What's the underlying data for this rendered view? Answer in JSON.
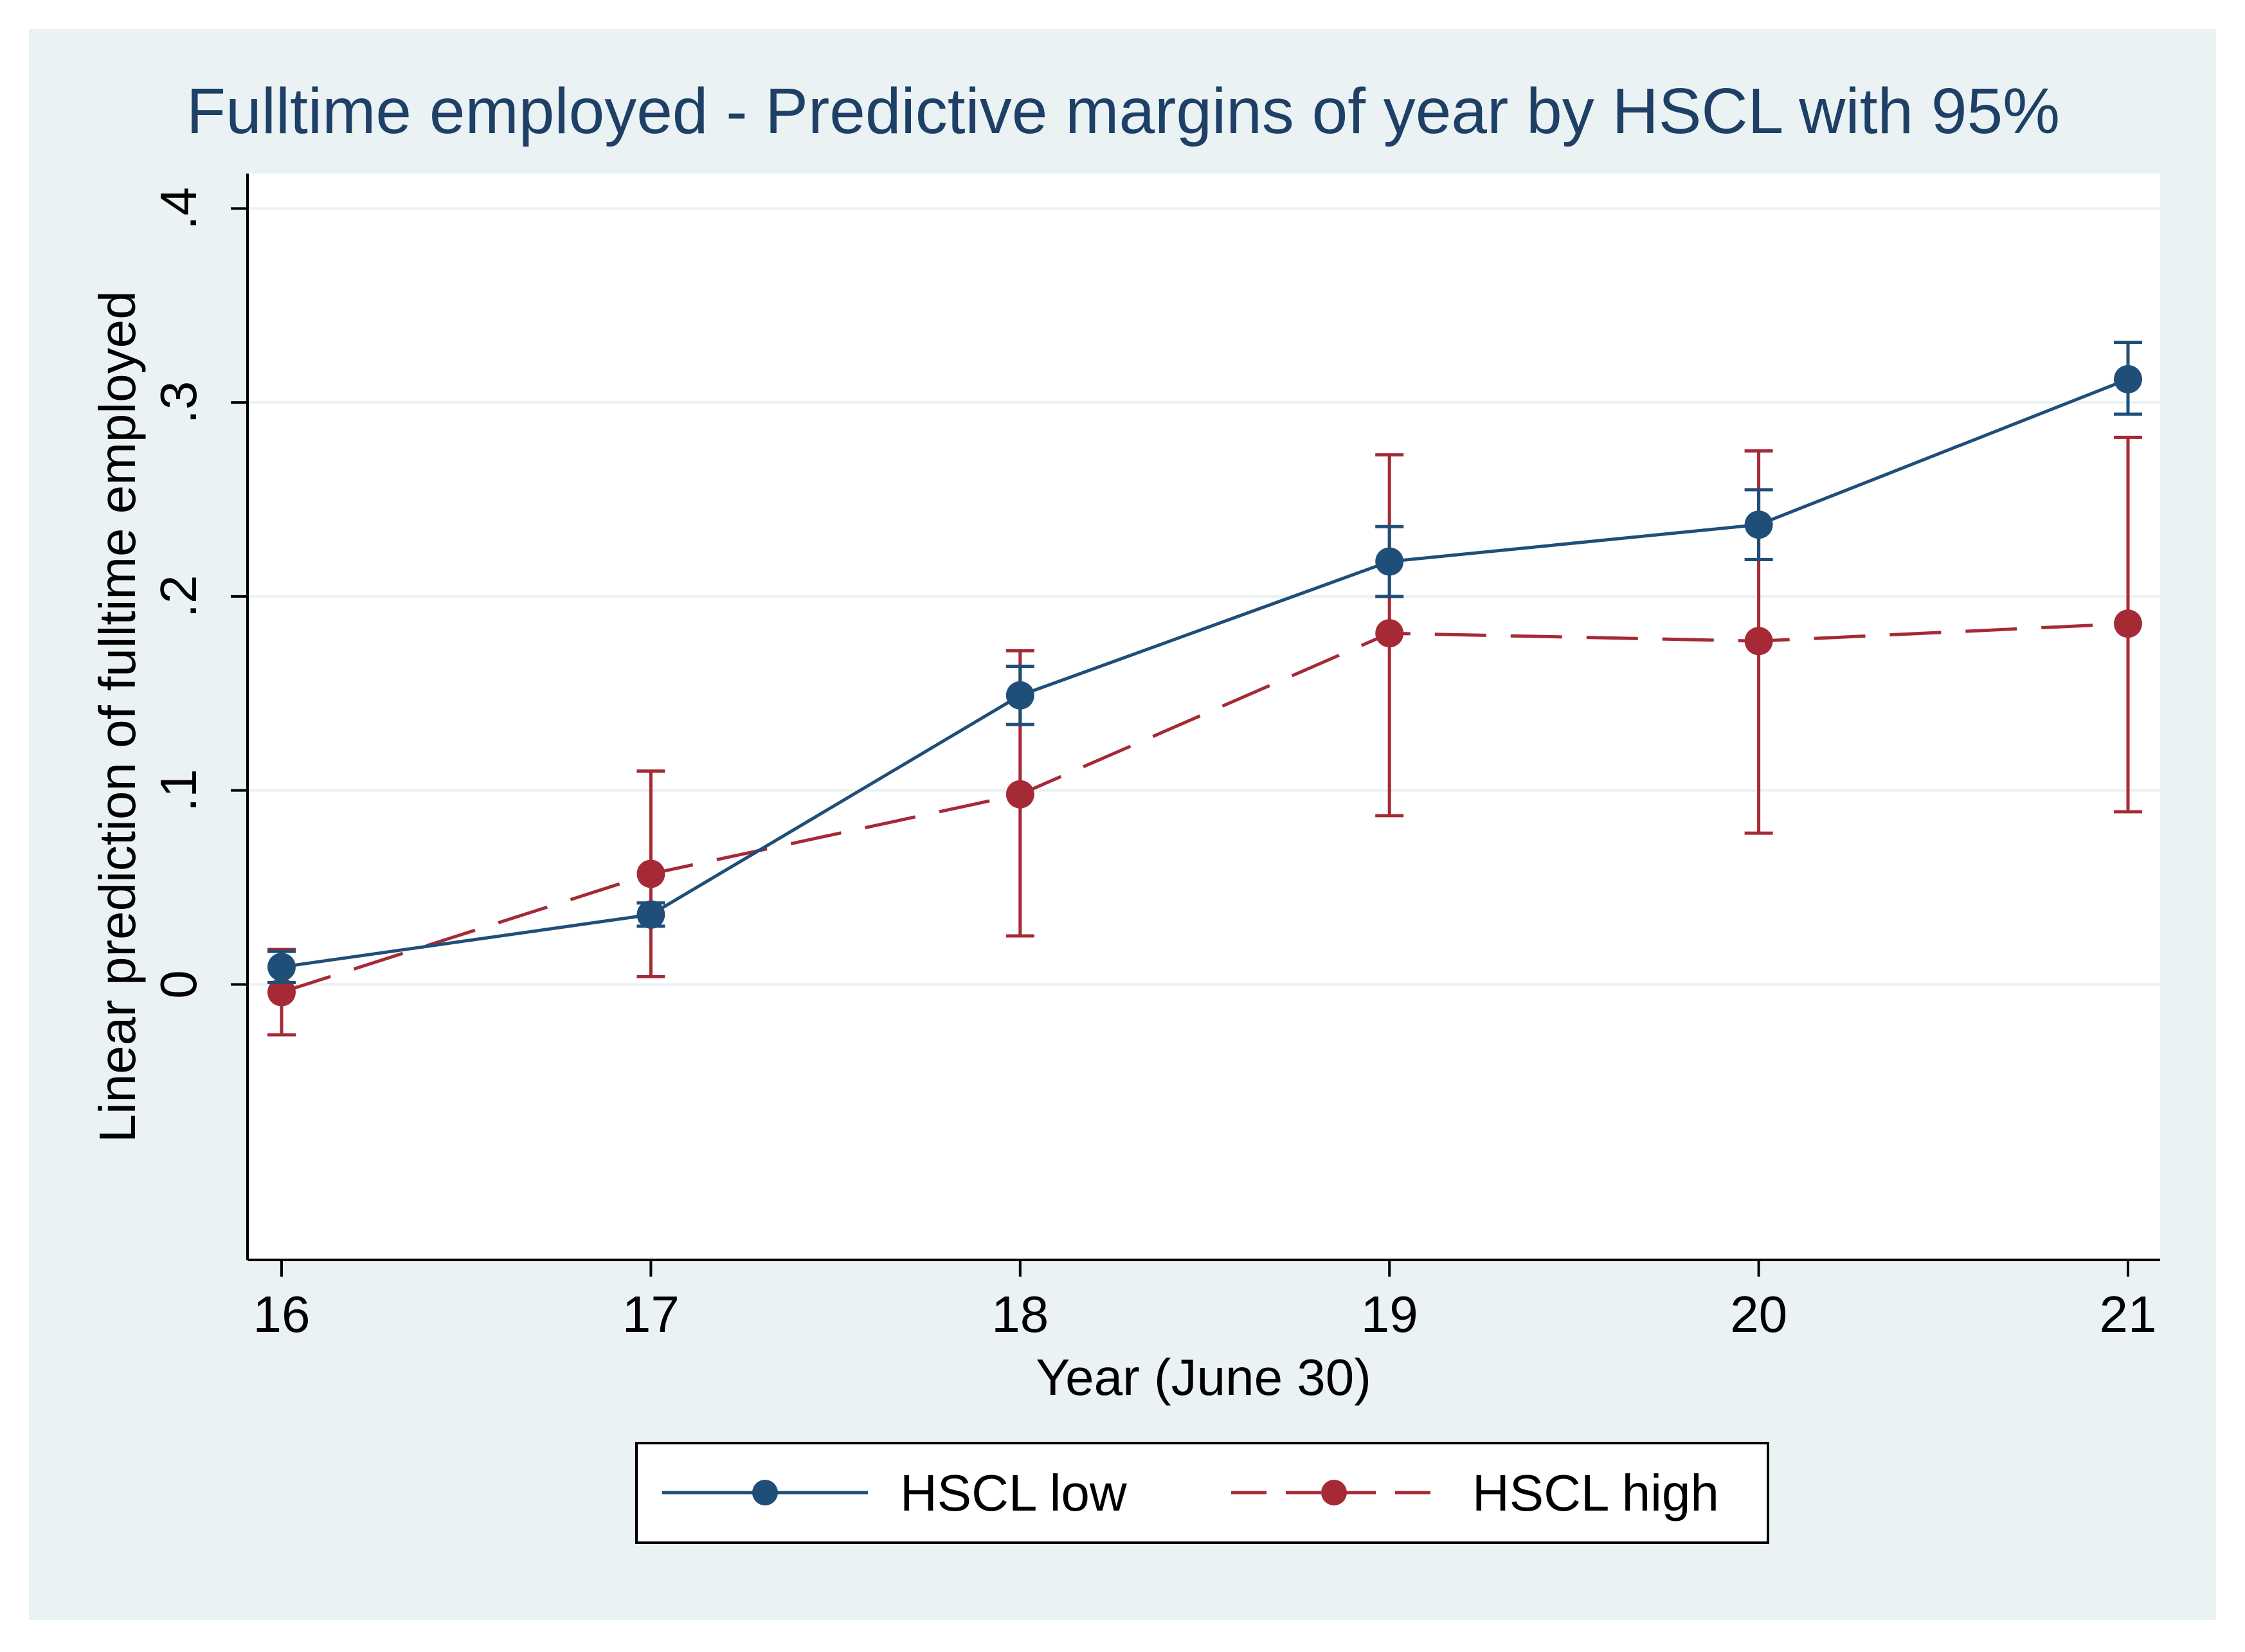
{
  "chart_data": {
    "type": "line",
    "title": "Fulltime employed - Predictive margins of year by HSCL with 95%",
    "xlabel": "Year (June 30)",
    "ylabel": "Linear prediction of fulltime employed",
    "x": [
      16,
      17,
      18,
      19,
      20,
      21
    ],
    "x_tick_labels": [
      "16",
      "17",
      "18",
      "19",
      "20",
      "21"
    ],
    "xlim": [
      16,
      21
    ],
    "y_ticks": [
      0,
      0.1,
      0.2,
      0.3,
      0.4
    ],
    "y_tick_labels": [
      "0",
      ".1",
      ".2",
      ".3",
      ".4"
    ],
    "ylim": [
      -0.142,
      0.418
    ],
    "grid": true,
    "legend_position": "bottom",
    "series": [
      {
        "name": "HSCL low",
        "color": "#1f4e79",
        "line_style": "solid",
        "marker": "circle",
        "values": [
          0.009,
          0.036,
          0.149,
          0.218,
          0.237,
          0.312
        ],
        "ci_low": [
          0.001,
          0.03,
          0.134,
          0.2,
          0.219,
          0.294
        ],
        "ci_high": [
          0.017,
          0.042,
          0.164,
          0.236,
          0.255,
          0.331
        ]
      },
      {
        "name": "HSCL high",
        "color": "#a52a35",
        "line_style": "dashed",
        "marker": "circle",
        "values": [
          -0.004,
          0.057,
          0.098,
          0.181,
          0.177,
          0.186
        ],
        "ci_low": [
          -0.026,
          0.004,
          0.025,
          0.087,
          0.078,
          0.089
        ],
        "ci_high": [
          0.018,
          0.11,
          0.172,
          0.273,
          0.275,
          0.282
        ]
      }
    ]
  }
}
